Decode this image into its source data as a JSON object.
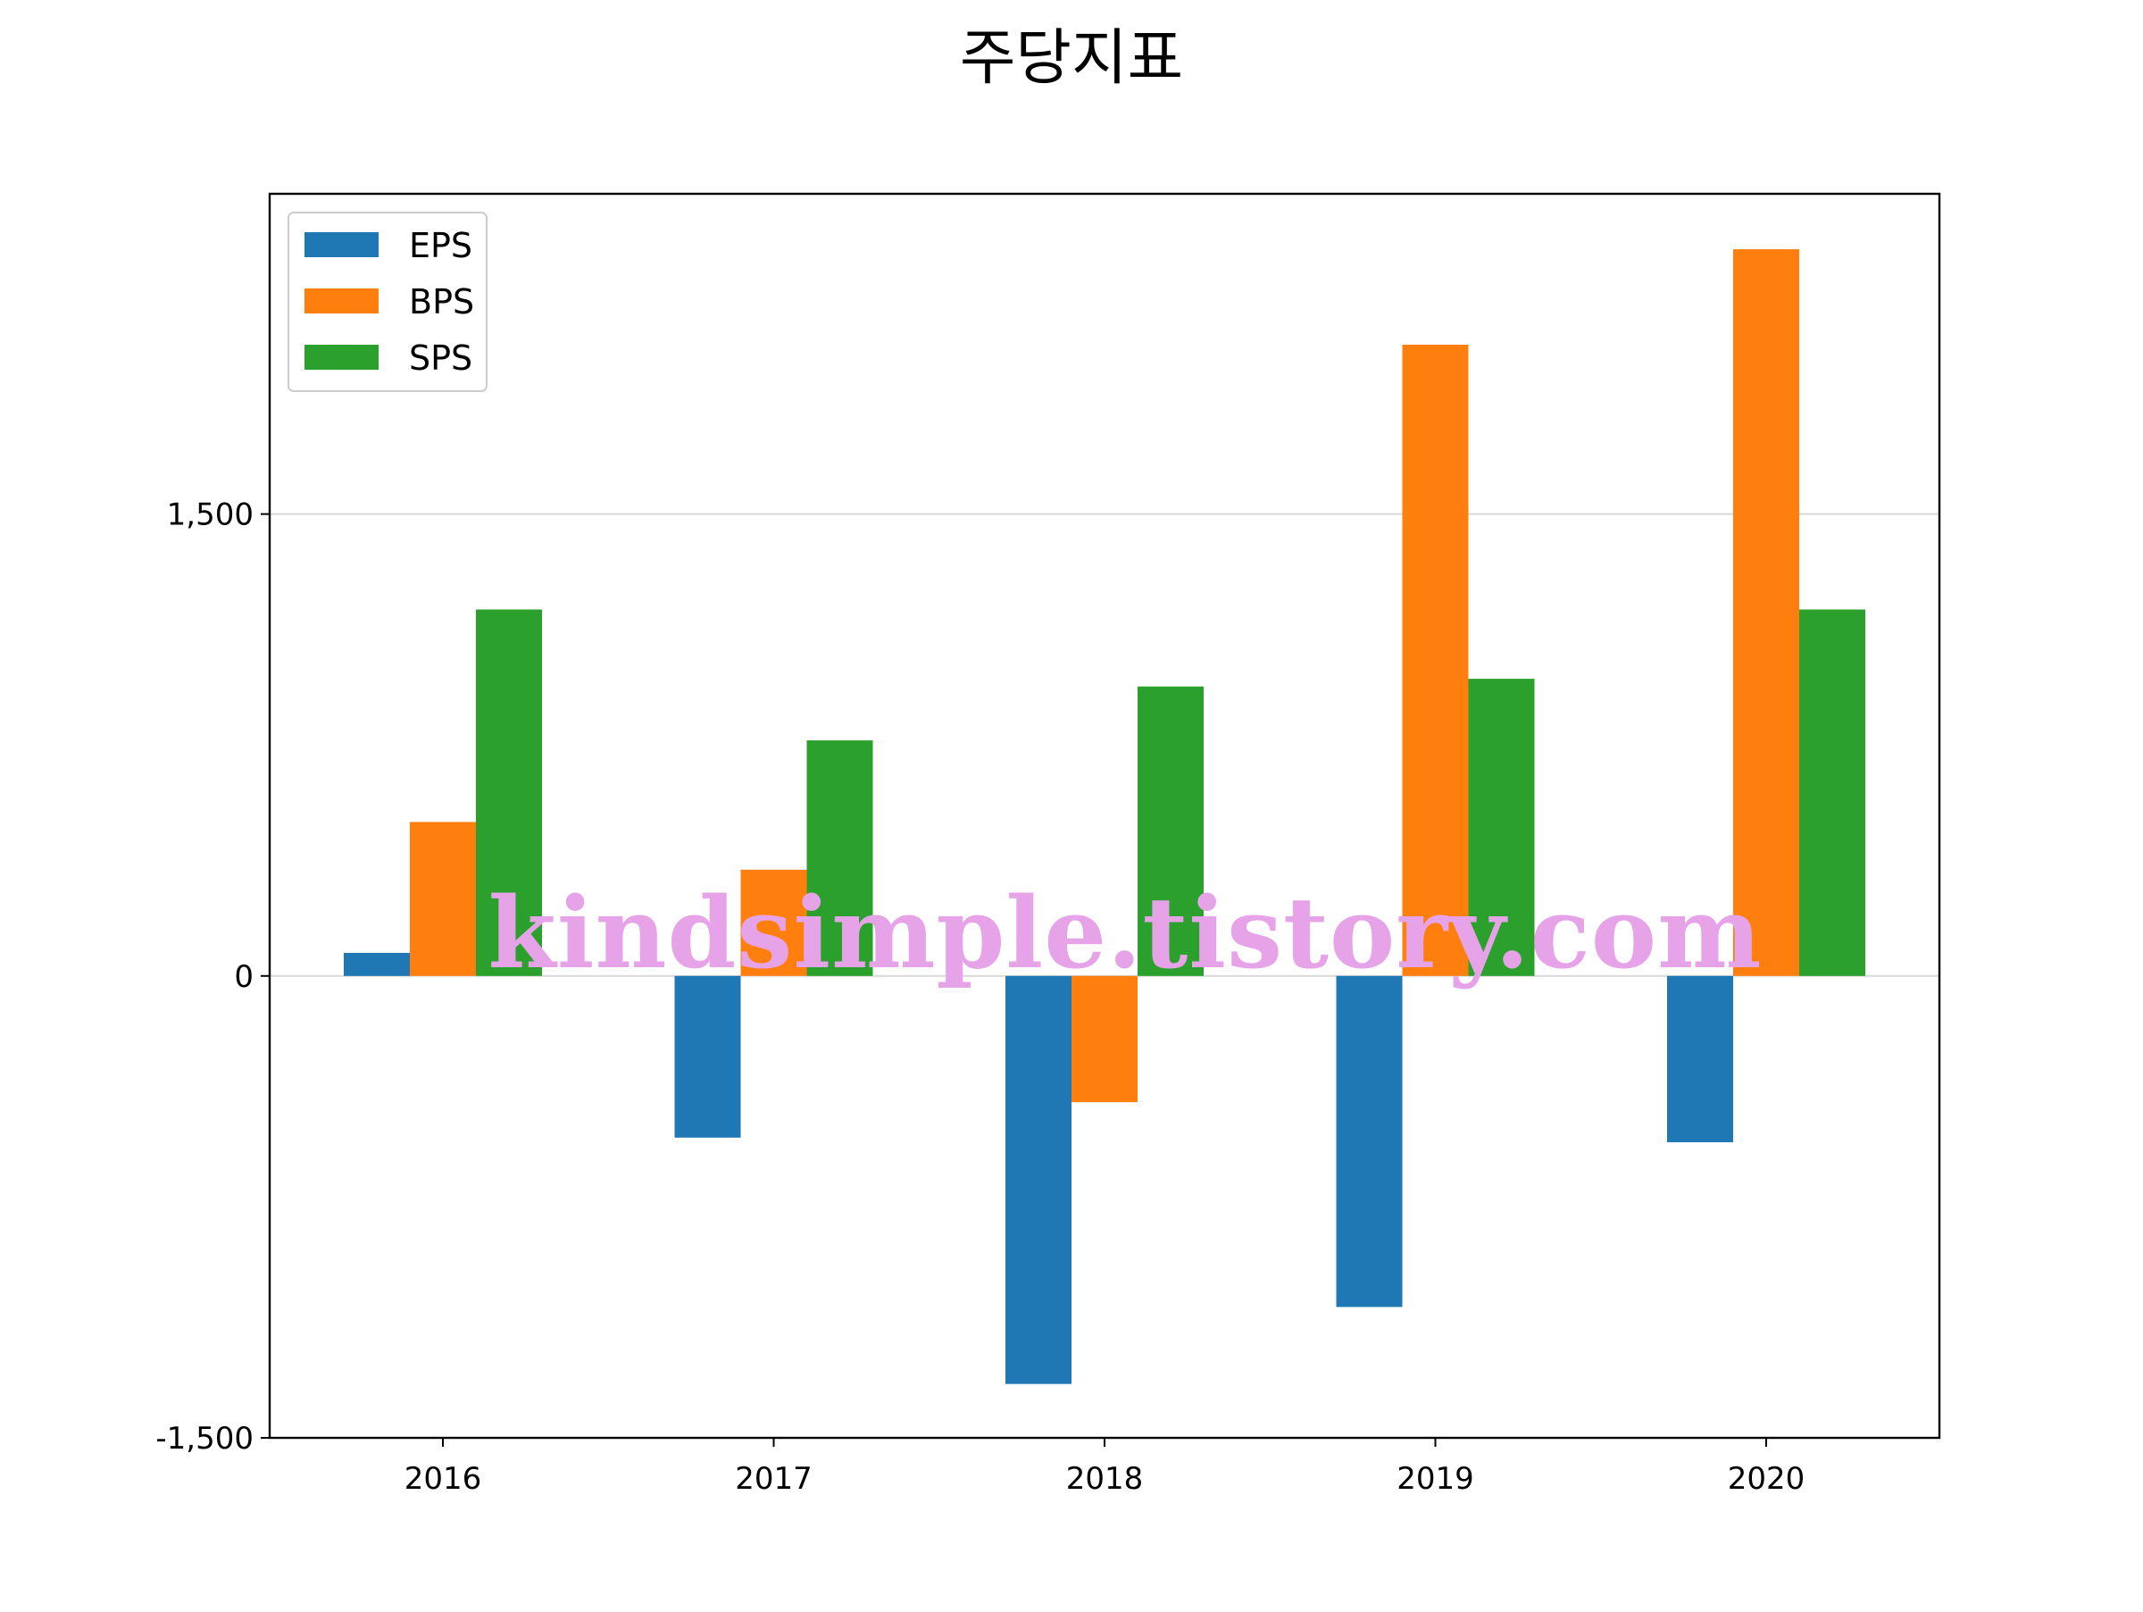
{
  "chart_data": {
    "type": "bar",
    "title": "주당지표",
    "xlabel": "",
    "ylabel": "",
    "categories": [
      "2016",
      "2017",
      "2018",
      "2019",
      "2020"
    ],
    "series": [
      {
        "name": "EPS",
        "color": "#1f77b4",
        "values": [
          75,
          -525,
          -1325,
          -1075,
          -540
        ]
      },
      {
        "name": "BPS",
        "color": "#ff7f0e",
        "values": [
          500,
          345,
          -410,
          2050,
          2360
        ]
      },
      {
        "name": "SPS",
        "color": "#2ca02c",
        "values": [
          1190,
          765,
          940,
          965,
          1190
        ]
      }
    ],
    "ylim": [
      -1500,
      2540
    ],
    "yticks": [
      -1500,
      0,
      1500
    ],
    "ytick_labels": [
      "-1,500",
      "0",
      "1,500"
    ],
    "grid": "horizontal",
    "legend_position": "top-left"
  },
  "watermark": "kindsimple.tistory.com"
}
